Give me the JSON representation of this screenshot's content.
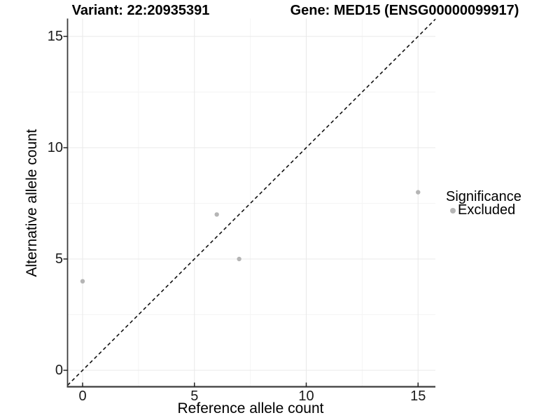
{
  "titles": {
    "left": "Variant: 22:20935391",
    "right": "Gene: MED15 (ENSG00000099917)"
  },
  "axes": {
    "x": {
      "label": "Reference allele count",
      "ticks": [
        "0",
        "5",
        "10",
        "15"
      ]
    },
    "y": {
      "label": "Alternative allele count",
      "ticks": [
        "0",
        "5",
        "10",
        "15"
      ]
    }
  },
  "legend": {
    "title": "Significance",
    "items": [
      {
        "label": "Excluded",
        "color": "#b5b5b5"
      }
    ]
  },
  "colors": {
    "background": "#ffffff",
    "point": "#b5b5b5",
    "major_grid": "#e8e8e8",
    "minor_grid": "#f4f4f4",
    "axis_line": "#3c3c3c",
    "reference_line": "#111111",
    "tick_text": "#1a1a1a"
  },
  "chart_data": {
    "type": "scatter",
    "title": "Variant: 22:20935391 — Gene: MED15 (ENSG00000099917)",
    "xlabel": "Reference allele count",
    "ylabel": "Alternative allele count",
    "xlim": [
      -0.75,
      15.75
    ],
    "ylim": [
      -0.75,
      15.75
    ],
    "x_major_ticks": [
      0,
      5,
      10,
      15
    ],
    "y_major_ticks": [
      0,
      5,
      10,
      15
    ],
    "x_minor_gridlines": [
      2.5,
      7.5,
      12.5
    ],
    "y_minor_gridlines": [
      2.5,
      7.5,
      12.5
    ],
    "grid": true,
    "legend_position": "right",
    "series": [
      {
        "name": "Excluded",
        "color": "#b5b5b5",
        "points": [
          {
            "x": 0,
            "y": 4
          },
          {
            "x": 6,
            "y": 7
          },
          {
            "x": 7,
            "y": 5
          },
          {
            "x": 15,
            "y": 8
          }
        ]
      }
    ],
    "reference_line": {
      "type": "identity",
      "slope": 1,
      "intercept": 0,
      "style": "dashed",
      "color": "#111111"
    }
  }
}
